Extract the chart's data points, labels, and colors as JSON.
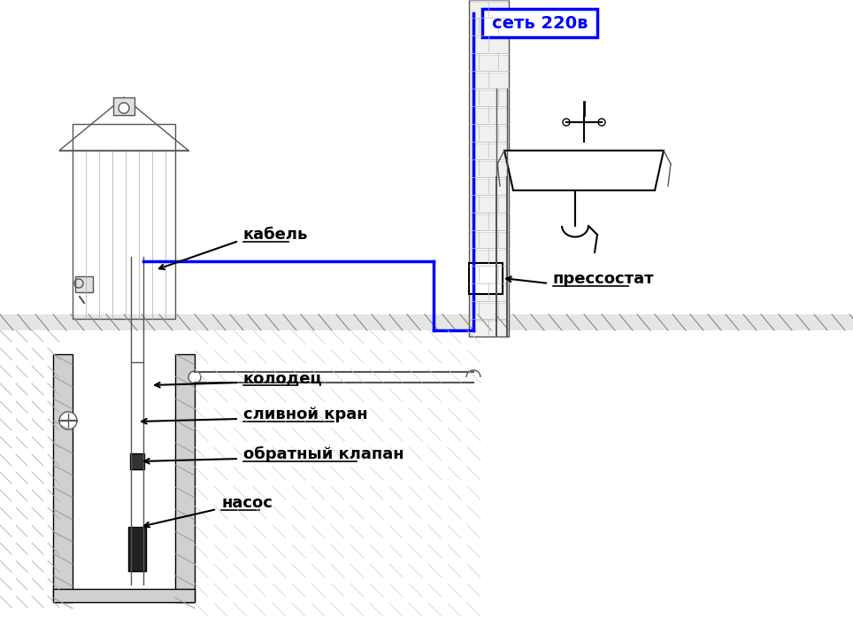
{
  "bg_color": "#ffffff",
  "gray": "#888888",
  "dark_gray": "#555555",
  "light_gray": "#aaaaaa",
  "hatch_color": "#999999",
  "blue": "#0000ff",
  "black": "#000000",
  "labels": {
    "set220": "сеть 220в",
    "kabel": "кабель",
    "pressostat": "прессостат",
    "kolodec": "колодец",
    "slivnoy": "сливной кран",
    "obratny": "обратный клапан",
    "nasos": "насос"
  }
}
